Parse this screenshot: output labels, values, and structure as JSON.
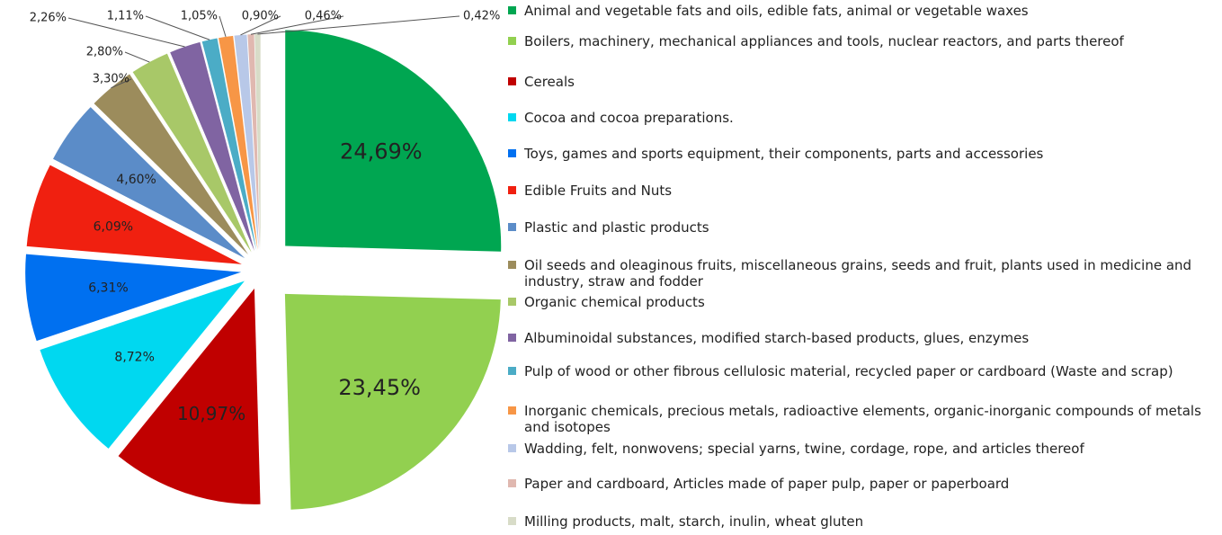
{
  "chart_data": {
    "type": "pie",
    "categories": [
      "Animal and vegetable fats and oils, edible fats, animal or vegetable waxes",
      "Boilers, machinery, mechanical appliances and tools, nuclear reactors, and parts thereof",
      "Cereals",
      "Cocoa and cocoa preparations.",
      "Toys, games and sports equipment, their components, parts and accessories",
      "Edible Fruits and Nuts",
      "Plastic and plastic products",
      "Oil seeds and oleaginous fruits, miscellaneous grains, seeds and fruit, plants used in medicine and industry, straw and fodder",
      "Organic chemical products",
      "Albuminoidal substances, modified starch-based products, glues, enzymes",
      "Pulp of wood or other fibrous cellulosic material, recycled paper or cardboard (Waste and scrap)",
      "Inorganic chemicals, precious metals, radioactive elements, organic-inorganic compounds of metals and isotopes",
      "Wadding, felt, nonwovens; special yarns, twine, cordage, rope, and articles thereof",
      "Paper and cardboard, Articles made of paper pulp, paper or paperboard",
      "Milling products, malt, starch, inulin, wheat gluten"
    ],
    "values": [
      24.69,
      23.45,
      10.97,
      8.72,
      6.31,
      6.09,
      4.6,
      3.3,
      2.8,
      2.26,
      1.11,
      1.05,
      0.9,
      0.46,
      0.42
    ],
    "value_labels": [
      "24,69%",
      "23,45%",
      "10,97%",
      "8,72%",
      "6,31%",
      "6,09%",
      "4,60%",
      "3,30%",
      "2,80%",
      "2,26%",
      "1,11%",
      "1,05%",
      "0,90%",
      "0,46%",
      "0,42%"
    ],
    "colors": [
      "#00a651",
      "#92d050",
      "#c00000",
      "#00d8f0",
      "#0070f0",
      "#f02010",
      "#5b8cc8",
      "#9c8c5c",
      "#a8c868",
      "#8064a2",
      "#4bacc6",
      "#f79646",
      "#b8c8e8",
      "#e0b8b0",
      "#d8dcc8"
    ],
    "legend": "right"
  }
}
